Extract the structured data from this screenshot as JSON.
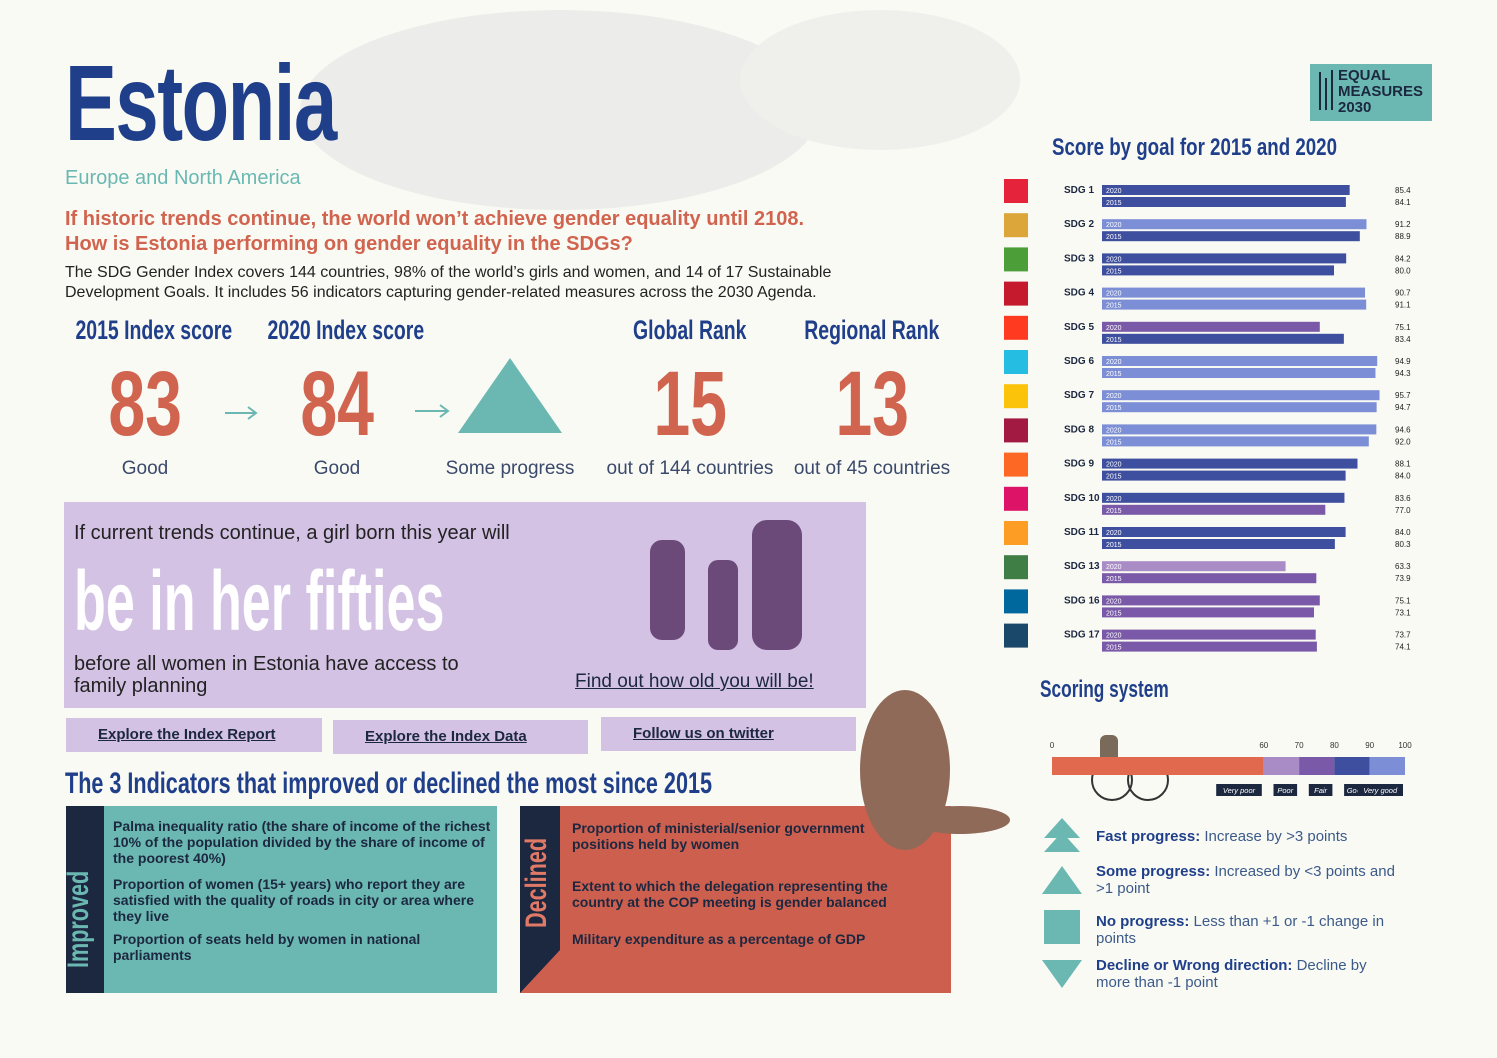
{
  "header": {
    "title": "Estonia",
    "region": "Europe and North America",
    "logo": [
      "EQUAL",
      "MEASURES",
      "2030"
    ]
  },
  "intro": {
    "headline": [
      "If historic trends continue, the world won’t achieve gender equality until 2108.",
      "How is Estonia performing on gender equality in the SDGs?"
    ],
    "body": [
      "The SDG Gender Index covers 144 countries, 98% of the world’s girls and women, and 14 of 17 Sustainable",
      "Development Goals. It includes 56 indicators capturing gender-related measures across the 2030 Agenda."
    ]
  },
  "scores": [
    {
      "label": "2015 Index score",
      "value": 83,
      "caption": "Good"
    },
    {
      "label": "2020  Index score",
      "value": 84,
      "caption": "Good"
    },
    {
      "caption": "Some progress"
    },
    {
      "label": "Global Rank",
      "value": 15,
      "caption": "out of 144 countries"
    },
    {
      "label": "Regional Rank",
      "value": 13,
      "caption": "out of 45 countries"
    }
  ],
  "girl": {
    "intro": "If current trends continue, a girl born this year will",
    "headline": "be in her fifties",
    "outro": [
      "before all women in Estonia have access to",
      "family planning"
    ],
    "link": "Find out how old you will be!"
  },
  "links": [
    "Explore the Index Report",
    "Explore the Index Data",
    "Follow us on twitter"
  ],
  "indicators": {
    "title": "The 3 Indicators that improved or declined the most since 2015",
    "improved": {
      "label": "Improved",
      "items": [
        "Palma inequality ratio (the share of income of the richest 10% of the population divided by the share of income of the poorest 40%)",
        "Proportion of women (15+ years) who report they are satisfied with the quality of roads in city or area where they live",
        "Proportion of seats held by women in national parliaments"
      ]
    },
    "declined": {
      "label": "Declined",
      "items": [
        "Proportion of ministerial/senior government positions held by women",
        "Extent to which the delegation representing the country at the COP meeting is gender balanced",
        "Military expenditure as a percentage of GDP"
      ]
    }
  },
  "chart_data": {
    "type": "bar",
    "orientation": "horizontal",
    "title": "Score by goal for 2015 and 2020",
    "categories": [
      "SDG 1",
      "SDG 2",
      "SDG 3",
      "SDG 4",
      "SDG 5",
      "SDG 6",
      "SDG 7",
      "SDG 8",
      "SDG 9",
      "SDG 10",
      "SDG 11",
      "SDG 13",
      "SDG 16",
      "SDG 17"
    ],
    "series": [
      {
        "name": "2020",
        "values": [
          85.4,
          91.2,
          84.2,
          90.7,
          75.1,
          94.9,
          95.7,
          94.6,
          88.1,
          83.6,
          84.0,
          63.3,
          75.1,
          73.7
        ],
        "value_labels": [
          "85.4",
          "91.2",
          "84.2",
          "90.7",
          "75.1",
          "94.9",
          "95.7",
          "94.6",
          "88.1",
          "83.6",
          "84.0",
          "63.3",
          "75.1",
          "73.7"
        ]
      },
      {
        "name": "2015",
        "values": [
          84.1,
          88.9,
          80.0,
          91.1,
          83.4,
          94.3,
          94.7,
          92.0,
          84.0,
          77.0,
          80.3,
          73.9,
          73.1,
          74.1
        ],
        "value_labels": [
          "84.1",
          "88.9",
          "80.0",
          "91.1",
          "83.4",
          "94.3",
          "94.7",
          "92.0",
          "84.0",
          "77.0",
          "80.3",
          "73.9",
          "73.1",
          "74.1"
        ]
      }
    ],
    "xlim": [
      0,
      100
    ]
  },
  "scoring": {
    "title": "Scoring system",
    "ticks": [
      0,
      60,
      70,
      80,
      90,
      100
    ],
    "bands": [
      {
        "label": "Very poor",
        "color": "#e0694e"
      },
      {
        "label": "Poor",
        "color": "#a98cc6"
      },
      {
        "label": "Fair",
        "color": "#7a5aa8"
      },
      {
        "label": "Good",
        "color": "#3e4f9f"
      },
      {
        "label": "Very good",
        "color": "#7b8ed6"
      }
    ],
    "legend": [
      {
        "term": "Fast progress:",
        "text": " Increase by >3 points"
      },
      {
        "term": "Some progress:",
        "text": " Increased by <3 points and >1 point"
      },
      {
        "term": "No progress:",
        "text": " Less than +1 or -1 change in points"
      },
      {
        "term": "Decline or Wrong direction:",
        "text": " Decline by more than -1 point"
      }
    ]
  }
}
